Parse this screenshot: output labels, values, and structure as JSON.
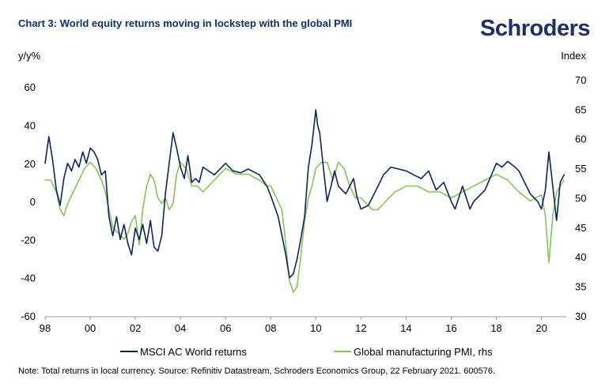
{
  "header": {
    "title": "Chart 3: World equity returns moving in lockstep with the global PMI",
    "logo": "Schroders"
  },
  "footer": {
    "note": "Note: Total returns in local currency. Source: Refinitiv Datastream, Schroders Economics Group, 22 February 2021. 600576."
  },
  "chart_data": {
    "type": "line",
    "ylabel": "y/y%",
    "y2label": "Index",
    "ylim": [
      -60,
      70
    ],
    "y2lim": [
      30,
      72
    ],
    "xlim": [
      1998,
      2021.1
    ],
    "yticks": [
      -60,
      -40,
      -20,
      0,
      20,
      40,
      60
    ],
    "y2ticks": [
      30,
      35,
      40,
      45,
      50,
      55,
      60,
      65,
      70
    ],
    "xticks": [
      {
        "value": 1998,
        "label": "98"
      },
      {
        "value": 2000,
        "label": "00"
      },
      {
        "value": 2002,
        "label": "02"
      },
      {
        "value": 2004,
        "label": "04"
      },
      {
        "value": 2006,
        "label": "06"
      },
      {
        "value": 2008,
        "label": "08"
      },
      {
        "value": 2010,
        "label": "10"
      },
      {
        "value": 2012,
        "label": "12"
      },
      {
        "value": 2014,
        "label": "14"
      },
      {
        "value": 2016,
        "label": "16"
      },
      {
        "value": 2018,
        "label": "18"
      },
      {
        "value": 2020,
        "label": "20"
      }
    ],
    "grid": false,
    "legend_position": "bottom",
    "series": [
      {
        "name": "MSCI AC World returns",
        "axis": "left",
        "color": "#0d2463",
        "x": [
          1998.0,
          1998.17,
          1998.33,
          1998.5,
          1998.67,
          1998.83,
          1999.0,
          1999.17,
          1999.33,
          1999.5,
          1999.67,
          1999.83,
          2000.0,
          2000.17,
          2000.33,
          2000.5,
          2000.67,
          2000.83,
          2001.0,
          2001.17,
          2001.33,
          2001.5,
          2001.67,
          2001.83,
          2002.0,
          2002.17,
          2002.33,
          2002.5,
          2002.67,
          2002.83,
          2003.0,
          2003.17,
          2003.33,
          2003.5,
          2003.67,
          2003.83,
          2004.0,
          2004.17,
          2004.33,
          2004.5,
          2004.67,
          2004.83,
          2005.0,
          2005.5,
          2006.0,
          2006.33,
          2006.67,
          2007.0,
          2007.5,
          2007.83,
          2008.0,
          2008.33,
          2008.67,
          2008.83,
          2009.0,
          2009.17,
          2009.33,
          2009.5,
          2009.67,
          2009.83,
          2010.0,
          2010.08,
          2010.17,
          2010.33,
          2010.5,
          2010.67,
          2010.83,
          2011.0,
          2011.33,
          2011.67,
          2011.83,
          2012.0,
          2012.33,
          2012.67,
          2013.0,
          2013.33,
          2013.67,
          2014.0,
          2014.33,
          2014.67,
          2015.0,
          2015.33,
          2015.67,
          2016.0,
          2016.17,
          2016.5,
          2016.83,
          2017.0,
          2017.5,
          2018.0,
          2018.25,
          2018.5,
          2018.83,
          2019.0,
          2019.5,
          2019.83,
          2020.0,
          2020.17,
          2020.33,
          2020.5,
          2020.67,
          2020.83,
          2021.0
        ],
        "values": [
          20,
          34,
          22,
          6,
          -2,
          12,
          20,
          16,
          22,
          18,
          26,
          20,
          28,
          26,
          22,
          14,
          16,
          -8,
          -18,
          -8,
          -20,
          -12,
          -22,
          -28,
          -14,
          -20,
          -12,
          -22,
          -10,
          -24,
          -26,
          -18,
          4,
          20,
          36,
          28,
          18,
          12,
          24,
          10,
          12,
          10,
          18,
          14,
          20,
          16,
          15,
          17,
          14,
          8,
          3,
          -8,
          -28,
          -40,
          -38,
          -30,
          -20,
          -8,
          18,
          30,
          48,
          40,
          36,
          18,
          0,
          8,
          16,
          8,
          4,
          12,
          2,
          -4,
          -2,
          6,
          14,
          18,
          17,
          16,
          14,
          12,
          16,
          6,
          10,
          0,
          -4,
          8,
          -4,
          0,
          6,
          20,
          18,
          21,
          18,
          16,
          4,
          0,
          -4,
          6,
          26,
          8,
          -10,
          10,
          14
        ]
      },
      {
        "name": "Global manufacturing PMI, rhs",
        "axis": "right",
        "color": "#86c556",
        "x": [
          1998.0,
          1998.25,
          1998.5,
          1998.67,
          1998.83,
          1999.0,
          1999.25,
          1999.5,
          1999.75,
          2000.0,
          2000.25,
          2000.5,
          2000.67,
          2000.83,
          2001.0,
          2001.25,
          2001.5,
          2001.67,
          2001.83,
          2002.0,
          2002.17,
          2002.33,
          2002.5,
          2002.67,
          2002.83,
          2003.0,
          2003.17,
          2003.33,
          2003.5,
          2003.67,
          2003.83,
          2004.0,
          2004.25,
          2004.5,
          2004.75,
          2005.0,
          2005.25,
          2005.5,
          2005.75,
          2006.0,
          2006.5,
          2007.0,
          2007.5,
          2007.83,
          2008.0,
          2008.25,
          2008.5,
          2008.67,
          2008.83,
          2009.0,
          2009.17,
          2009.33,
          2009.5,
          2009.67,
          2009.83,
          2010.0,
          2010.25,
          2010.5,
          2010.75,
          2011.0,
          2011.25,
          2011.5,
          2011.75,
          2012.0,
          2012.25,
          2012.5,
          2012.75,
          2013.0,
          2013.5,
          2014.0,
          2014.5,
          2015.0,
          2015.5,
          2016.0,
          2016.5,
          2017.0,
          2017.5,
          2018.0,
          2018.5,
          2019.0,
          2019.5,
          2020.0,
          2020.17,
          2020.33,
          2020.5,
          2020.67,
          2020.83,
          2021.0
        ],
        "values": [
          53,
          53,
          51,
          48,
          47,
          49,
          51,
          53,
          55,
          56,
          55,
          53,
          51,
          48,
          45,
          44,
          43,
          44,
          46,
          47,
          42,
          48,
          52,
          54,
          53,
          50,
          49,
          50,
          48,
          49,
          54,
          56,
          55,
          52,
          52,
          51,
          52,
          53,
          54,
          55,
          54,
          54,
          53,
          52,
          52,
          50,
          48,
          42,
          36,
          34,
          35,
          40,
          46,
          50,
          52,
          55,
          56,
          56,
          53,
          56,
          55,
          52,
          50,
          50,
          49,
          48,
          48,
          49,
          51,
          52,
          52,
          51,
          51,
          50,
          51,
          52,
          53,
          54,
          53,
          51,
          49.5,
          50.5,
          47,
          39,
          47,
          51,
          52,
          53
        ]
      }
    ]
  }
}
